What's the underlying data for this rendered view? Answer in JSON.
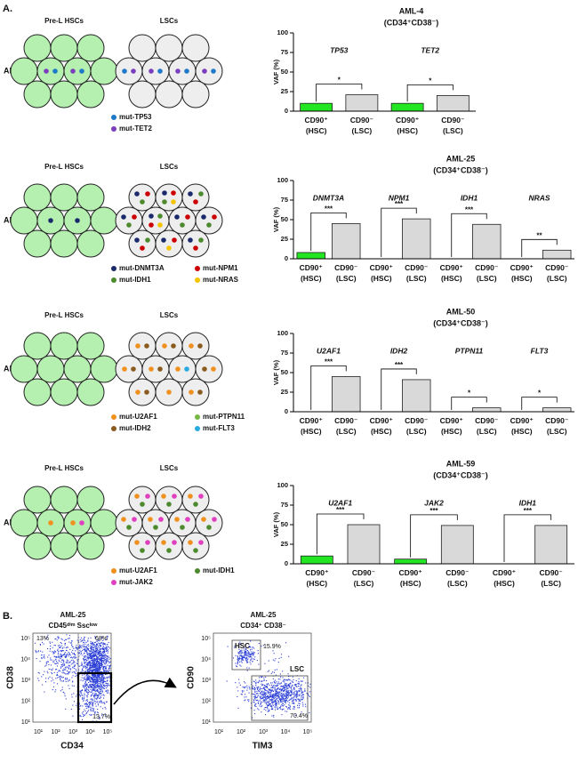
{
  "panel_a": {
    "label": "A.",
    "rows": [
      {
        "sample": "AML-4",
        "pre_label": "Pre-L HSCs",
        "lsc_label": "LSCs",
        "legend": [
          {
            "label": "mut-TP53",
            "color": "#1f78c8"
          },
          {
            "label": "mut-TET2",
            "color": "#7b3fbe"
          }
        ]
      },
      {
        "sample": "AML-25",
        "pre_label": "Pre-L HSCs",
        "lsc_label": "LSCs",
        "legend": [
          {
            "label": "mut-DNMT3A",
            "color": "#1a2b6d"
          },
          {
            "label": "mut-NPM1",
            "color": "#cc0000"
          },
          {
            "label": "mut-IDH1",
            "color": "#4d8a2e"
          },
          {
            "label": "mut-NRAS",
            "color": "#f5c400"
          }
        ]
      },
      {
        "sample": "AML-50",
        "pre_label": "Pre-L HSCs",
        "lsc_label": "LSCs",
        "legend": [
          {
            "label": "mut-U2AF1",
            "color": "#f0901e"
          },
          {
            "label": "mut-PTPN11",
            "color": "#77b843"
          },
          {
            "label": "mut-IDH2",
            "color": "#8b5a1e"
          },
          {
            "label": "mut-FLT3",
            "color": "#29abe2"
          }
        ]
      },
      {
        "sample": "AML-59",
        "pre_label": "Pre-L HSCs",
        "lsc_label": "LSCs",
        "legend": [
          {
            "label": "mut-U2AF1",
            "color": "#f0901e"
          },
          {
            "label": "mut-IDH1",
            "color": "#4d8a2e"
          },
          {
            "label": "mut-JAK2",
            "color": "#e040c0"
          }
        ]
      }
    ]
  },
  "chart_data": [
    {
      "type": "bar",
      "title": "AML-4",
      "subtitle": "(CD34⁺CD38⁻)",
      "ylabel": "VAF (%)",
      "ylim": [
        0,
        100
      ],
      "yticks": [
        0,
        25,
        50,
        75,
        100
      ],
      "categories": [
        "TP53",
        "TET2"
      ],
      "category_colors": [
        "#1f78c8",
        "#7b3fbe"
      ],
      "series": [
        {
          "name": "CD90⁺ (HSC)",
          "color": "#22e622",
          "values": [
            10,
            10
          ]
        },
        {
          "name": "CD90⁻ (LSC)",
          "color": "#d9d9d9",
          "values": [
            21,
            20
          ]
        }
      ],
      "significance": [
        "*",
        "*"
      ]
    },
    {
      "type": "bar",
      "title": "AML-25",
      "subtitle": "(CD34⁺CD38⁻)",
      "ylabel": "VAF (%)",
      "ylim": [
        0,
        100
      ],
      "yticks": [
        0,
        25,
        50,
        75,
        100
      ],
      "categories": [
        "DNMT3A",
        "NPM1",
        "IDH1",
        "NRAS"
      ],
      "category_colors": [
        "#1a2b6d",
        "#cc0000",
        "#4d8a2e",
        "#f5c400"
      ],
      "series": [
        {
          "name": "CD90⁺ (HSC)",
          "color": "#22e622",
          "values": [
            8,
            0,
            0,
            0
          ]
        },
        {
          "name": "CD90⁻ (LSC)",
          "color": "#d9d9d9",
          "values": [
            45,
            51,
            44,
            11
          ]
        }
      ],
      "significance": [
        "***",
        "***",
        "***",
        "**"
      ]
    },
    {
      "type": "bar",
      "title": "AML-50",
      "subtitle": "(CD34⁺CD38⁻)",
      "ylabel": "VAF (%)",
      "ylim": [
        0,
        100
      ],
      "yticks": [
        0,
        25,
        50,
        75,
        100
      ],
      "categories": [
        "U2AF1",
        "IDH2",
        "PTPN11",
        "FLT3"
      ],
      "category_colors": [
        "#f0901e",
        "#8b5a1e",
        "#77b843",
        "#29abe2"
      ],
      "series": [
        {
          "name": "CD90⁺ (HSC)",
          "color": "#22e622",
          "values": [
            0,
            0,
            0,
            0
          ]
        },
        {
          "name": "CD90⁻ (LSC)",
          "color": "#d9d9d9",
          "values": [
            45,
            41,
            5,
            5
          ]
        }
      ],
      "significance": [
        "***",
        "***",
        "*",
        "*"
      ]
    },
    {
      "type": "bar",
      "title": "AML-59",
      "subtitle": "(CD34⁺CD38⁻)",
      "ylabel": "VAF (%)",
      "ylim": [
        0,
        100
      ],
      "yticks": [
        0,
        25,
        50,
        75,
        100
      ],
      "categories": [
        "U2AF1",
        "JAK2",
        "IDH1"
      ],
      "category_colors": [
        "#f0901e",
        "#e040c0",
        "#4d8a2e"
      ],
      "series": [
        {
          "name": "CD90⁺ (HSC)",
          "color": "#22e622",
          "values": [
            10,
            6,
            0
          ]
        },
        {
          "name": "CD90⁻ (LSC)",
          "color": "#d9d9d9",
          "values": [
            50,
            49,
            49
          ]
        }
      ],
      "significance": [
        "***",
        "***",
        "***"
      ]
    }
  ],
  "panel_b": {
    "label": "B.",
    "plots": [
      {
        "title": "AML-25",
        "subtitle": "CD45ᵈⁱᵐ Sscˡᵒʷ",
        "xlabel": "CD34",
        "ylabel": "CD38",
        "xticks": [
          "10¹",
          "10²",
          "10³",
          "10⁴",
          "10⁵"
        ],
        "yticks": [
          "10¹",
          "10²",
          "10³",
          "10⁴",
          "10⁵"
        ],
        "gates": [
          {
            "label": "13%"
          },
          {
            "label": "68%"
          },
          {
            "label": "13.7%"
          }
        ]
      },
      {
        "title": "AML-25",
        "subtitle": "CD34⁺ CD38⁻",
        "xlabel": "TIM3",
        "ylabel": "CD90",
        "xticks": [
          "10¹",
          "10²",
          "10³",
          "10⁴",
          "10⁵"
        ],
        "yticks": [
          "10¹",
          "10²",
          "10³",
          "10⁴",
          "10⁵"
        ],
        "gates": [
          {
            "name": "HSC",
            "label": "15.9%"
          },
          {
            "name": "LSC",
            "label": "70.4%"
          }
        ]
      }
    ]
  }
}
